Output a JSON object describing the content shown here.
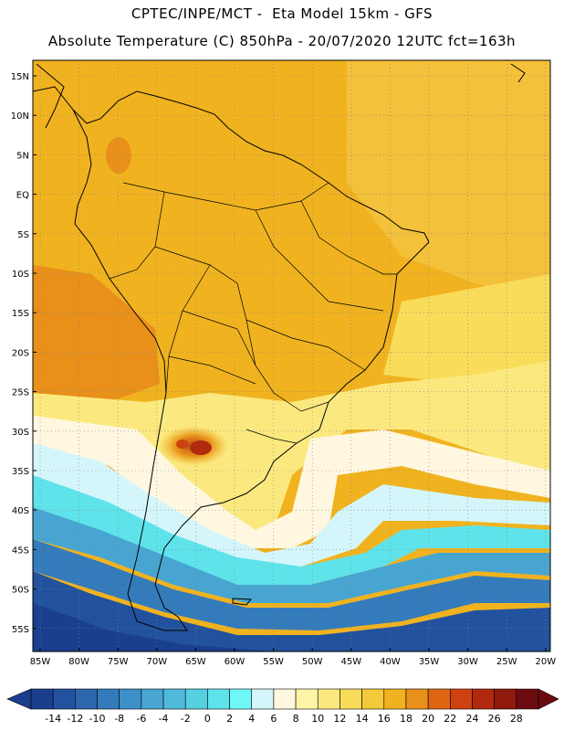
{
  "header": {
    "line1": "CPTEC/INPE/MCT -  Eta Model 15km - GFS",
    "line2": "Absolute Temperature (C) 850hPa - 20/07/2020 12UTC fct=163h"
  },
  "lat_labels": [
    "15N",
    "10N",
    "5N",
    "EQ",
    "5S",
    "10S",
    "15S",
    "20S",
    "25S",
    "30S",
    "35S",
    "40S",
    "45S",
    "50S",
    "55S"
  ],
  "lon_labels": [
    "85W",
    "80W",
    "75W",
    "70W",
    "65W",
    "60W",
    "55W",
    "50W",
    "45W",
    "40W",
    "35W",
    "30W",
    "25W",
    "20W"
  ],
  "colorbar": {
    "labels": [
      "-14",
      "-12",
      "-10",
      "-8",
      "-6",
      "-4",
      "-2",
      "0",
      "2",
      "4",
      "6",
      "8",
      "10",
      "12",
      "14",
      "16",
      "18",
      "20",
      "22",
      "24",
      "26",
      "28"
    ],
    "colors": [
      "#1b3f8f",
      "#22529e",
      "#2c66ad",
      "#347bbc",
      "#3e90c8",
      "#48a5d2",
      "#4fbad9",
      "#56cfe0",
      "#5fe3ea",
      "#6ff7f7",
      "#d4f6fb",
      "#fff7df",
      "#fdf4a8",
      "#fbe97f",
      "#f8dc5a",
      "#f4ca3a",
      "#f0b31f",
      "#e8901a",
      "#de6612",
      "#cd4210",
      "#b22a0e",
      "#8e190c",
      "#6b0b10"
    ]
  }
}
